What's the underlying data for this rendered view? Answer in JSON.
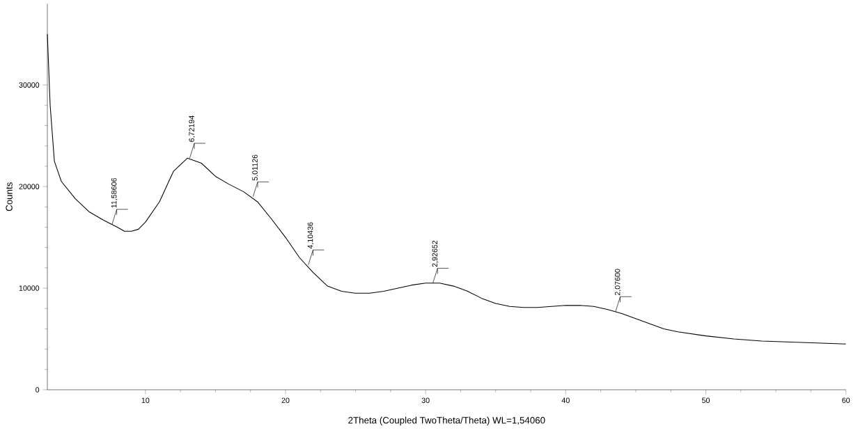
{
  "chart_data": {
    "type": "line",
    "xlabel": "2Theta (Coupled TwoTheta/Theta) WL=1,54060",
    "ylabel": "Counts",
    "x": [
      3.0,
      3.2,
      3.5,
      4,
      5,
      6,
      7,
      8,
      8.5,
      9,
      9.5,
      10,
      11,
      12,
      13,
      14,
      15,
      16,
      17,
      18,
      19,
      20,
      21,
      22,
      23,
      24,
      25,
      26,
      27,
      28,
      29,
      30,
      31,
      32,
      33,
      34,
      35,
      36,
      37,
      38,
      39,
      40,
      41,
      42,
      43,
      44,
      45,
      46,
      47,
      48,
      50,
      52,
      54,
      56,
      58,
      60
    ],
    "series": [
      {
        "color": "#000000",
        "values": [
          35000,
          28000,
          22500,
          20500,
          18800,
          17500,
          16700,
          16000,
          15600,
          15600,
          15800,
          16500,
          18500,
          21500,
          22800,
          22300,
          21000,
          20200,
          19500,
          18500,
          16800,
          15000,
          13000,
          11500,
          10200,
          9700,
          9500,
          9500,
          9700,
          10000,
          10300,
          10500,
          10500,
          10200,
          9700,
          9000,
          8500,
          8200,
          8100,
          8100,
          8200,
          8300,
          8300,
          8200,
          7900,
          7500,
          7000,
          6500,
          6000,
          5700,
          5300,
          5000,
          4800,
          4700,
          4600,
          4500
        ]
      }
    ],
    "xlim": [
      3,
      60
    ],
    "ylim": [
      0,
      38000
    ],
    "xticks": [
      10,
      20,
      30,
      40,
      50,
      60
    ],
    "yticks": [
      0,
      10000,
      20000,
      30000
    ],
    "marker": "none",
    "line_style": "solid",
    "annotations": [
      {
        "text": "11,58606",
        "x": 7.62,
        "y": 16300
      },
      {
        "text": "6,72194",
        "x": 13.16,
        "y": 22800
      },
      {
        "text": "5,01126",
        "x": 17.68,
        "y": 19000
      },
      {
        "text": "4,10436",
        "x": 21.63,
        "y": 12300
      },
      {
        "text": "2,92652",
        "x": 30.52,
        "y": 10500
      },
      {
        "text": "2,07600",
        "x": 43.56,
        "y": 7700
      }
    ]
  }
}
